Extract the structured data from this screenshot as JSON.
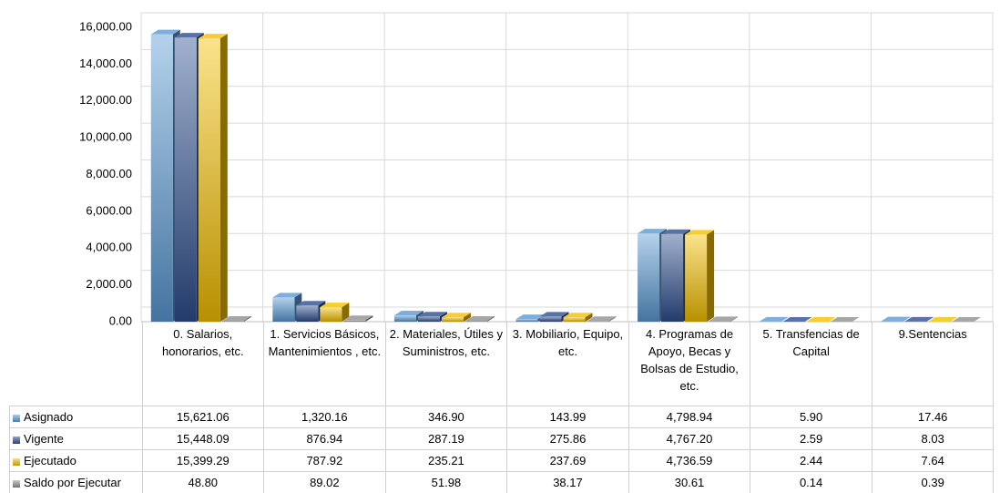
{
  "chart_data": {
    "type": "bar3d",
    "categories": [
      "0. Salarios, honorarios, etc.",
      "1. Servicios Básicos, Mantenimientos , etc.",
      "2. Materiales, Útiles y Suministros, etc.",
      "3. Mobiliario, Equipo, etc.",
      "4. Programas de Apoyo,  Becas y Bolsas de Estudio, etc.",
      "5. Transfencias de Capital",
      "9.Sentencias"
    ],
    "series": [
      {
        "name": "Asignado",
        "color": "#5b9bd5",
        "values": [
          15621.06,
          1320.16,
          346.9,
          143.99,
          4798.94,
          5.9,
          17.46
        ],
        "value_labels": [
          "15,621.06",
          "1,320.16",
          "346.90",
          "143.99",
          "4,798.94",
          "5.90",
          "17.46"
        ]
      },
      {
        "name": "Vigente",
        "color": "#2f4f8f",
        "values": [
          15448.09,
          876.94,
          287.19,
          275.86,
          4767.2,
          2.59,
          8.03
        ],
        "value_labels": [
          "15,448.09",
          "876.94",
          "287.19",
          "275.86",
          "4,767.20",
          "2.59",
          "8.03"
        ]
      },
      {
        "name": "Ejecutado",
        "color": "#f5c000",
        "values": [
          15399.29,
          787.92,
          235.21,
          237.69,
          4736.59,
          2.44,
          7.64
        ],
        "value_labels": [
          "15,399.29",
          "787.92",
          "235.21",
          "237.69",
          "4,736.59",
          "2.44",
          "7.64"
        ]
      },
      {
        "name": "Saldo por Ejecutar",
        "color": "#909090",
        "values": [
          48.8,
          89.02,
          51.98,
          38.17,
          30.61,
          0.14,
          0.39
        ],
        "value_labels": [
          "48.80",
          "89.02",
          "51.98",
          "38.17",
          "30.61",
          "0.14",
          "0.39"
        ]
      }
    ],
    "ylim": [
      0,
      16000
    ],
    "yticks": [
      {
        "value": 0,
        "label": "0.00"
      },
      {
        "value": 2000,
        "label": "2,000.00"
      },
      {
        "value": 4000,
        "label": "4,000.00"
      },
      {
        "value": 6000,
        "label": "6,000.00"
      },
      {
        "value": 8000,
        "label": "8,000.00"
      },
      {
        "value": 10000,
        "label": "10,000.00"
      },
      {
        "value": 12000,
        "label": "12,000.00"
      },
      {
        "value": 14000,
        "label": "14,000.00"
      },
      {
        "value": 16000,
        "label": "16,000.00"
      }
    ],
    "grid": true
  }
}
